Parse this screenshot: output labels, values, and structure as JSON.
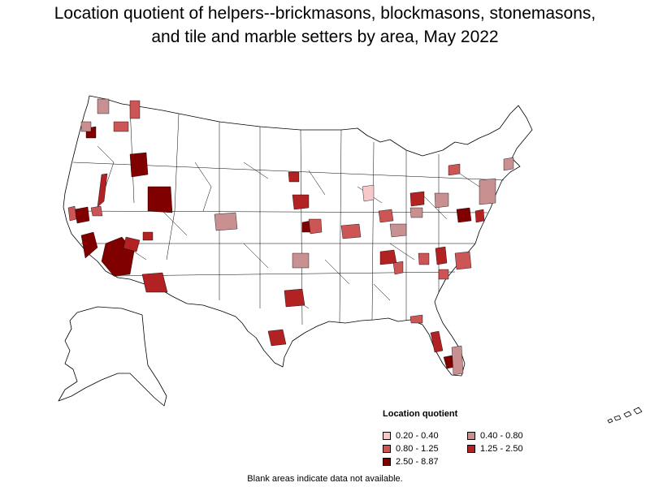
{
  "title_line1": "Location quotient of helpers--brickmasons, blockmasons, stonemasons,",
  "title_line2": "and tile and marble setters by area, May 2022",
  "legend": {
    "title": "Location quotient",
    "items": [
      {
        "label": "0.20 - 0.40",
        "color": "#f6c8c8"
      },
      {
        "label": "0.40 - 0.80",
        "color": "#c89090"
      },
      {
        "label": "0.80 - 1.25",
        "color": "#cc5555"
      },
      {
        "label": "1.25 - 2.50",
        "color": "#b22222"
      },
      {
        "label": "2.50 - 8.87",
        "color": "#800000"
      }
    ]
  },
  "footnote": "Blank areas indicate data not available."
}
